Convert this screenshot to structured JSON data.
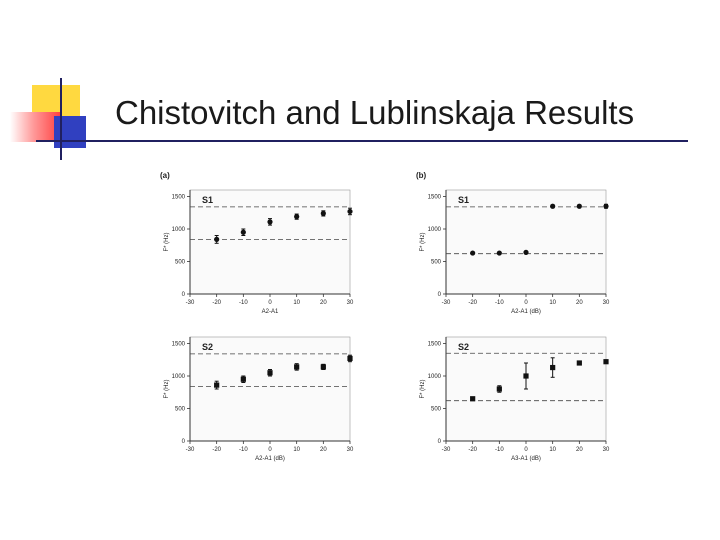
{
  "slide": {
    "title": "Chistovitch and Lublinskaja Results"
  },
  "chart_data": [
    {
      "type": "scatter",
      "panel": "(a)",
      "label": "S1",
      "x": [
        -20,
        -10,
        0,
        10,
        20,
        30
      ],
      "y": [
        840,
        950,
        1110,
        1190,
        1240,
        1270
      ],
      "err": [
        60,
        50,
        50,
        40,
        40,
        50
      ],
      "ref_lines": [
        1340,
        840
      ],
      "xlim": [
        -30,
        30
      ],
      "ylim": [
        0,
        1600
      ],
      "xticks": [
        "-30",
        "-20",
        "-10",
        "0",
        "10",
        "20",
        "30"
      ],
      "yticks": [
        "0",
        "500",
        "1000",
        "1500"
      ],
      "xlabel": "A2-A1",
      "ylabel": "F* (Hz)"
    },
    {
      "type": "scatter",
      "panel": "(b)",
      "label": "S1",
      "x": [
        -20,
        -10,
        0,
        10,
        20,
        30
      ],
      "y": [
        630,
        630,
        640,
        1350,
        1350,
        1350
      ],
      "err": [
        10,
        10,
        10,
        20,
        20,
        30
      ],
      "ref_lines": [
        1340,
        620
      ],
      "xlim": [
        -30,
        30
      ],
      "ylim": [
        0,
        1600
      ],
      "xticks": [
        "-30",
        "-20",
        "-10",
        "0",
        "10",
        "20",
        "30"
      ],
      "yticks": [
        "0",
        "500",
        "1000",
        "1500"
      ],
      "xlabel": "A2-A1 (dB)",
      "ylabel": "F* (Hz)"
    },
    {
      "type": "scatter",
      "label": "S2",
      "x": [
        -20,
        -10,
        0,
        10,
        20,
        30
      ],
      "y": [
        860,
        950,
        1050,
        1140,
        1140,
        1270
      ],
      "err": [
        60,
        50,
        50,
        50,
        40,
        50
      ],
      "ref_lines": [
        1340,
        840
      ],
      "xlim": [
        -30,
        30
      ],
      "ylim": [
        0,
        1600
      ],
      "xticks": [
        "-30",
        "-20",
        "-10",
        "0",
        "10",
        "20",
        "30"
      ],
      "yticks": [
        "0",
        "500",
        "1000",
        "1500"
      ],
      "xlabel": "A2-A1 (dB)",
      "ylabel": "F* (Hz)"
    },
    {
      "type": "scatter",
      "label": "S2",
      "x": [
        -20,
        -10,
        0,
        10,
        20,
        30
      ],
      "y": [
        650,
        800,
        1000,
        1130,
        1200,
        1220
      ],
      "err": [
        10,
        50,
        200,
        150,
        30,
        20
      ],
      "ref_lines": [
        1350,
        620
      ],
      "xlim": [
        -30,
        30
      ],
      "ylim": [
        0,
        1600
      ],
      "xticks": [
        "-30",
        "-20",
        "-10",
        "0",
        "10",
        "20",
        "30"
      ],
      "yticks": [
        "0",
        "500",
        "1000",
        "1500"
      ],
      "xlabel": "A3-A1 (dB)",
      "ylabel": "F* (Hz)"
    }
  ]
}
